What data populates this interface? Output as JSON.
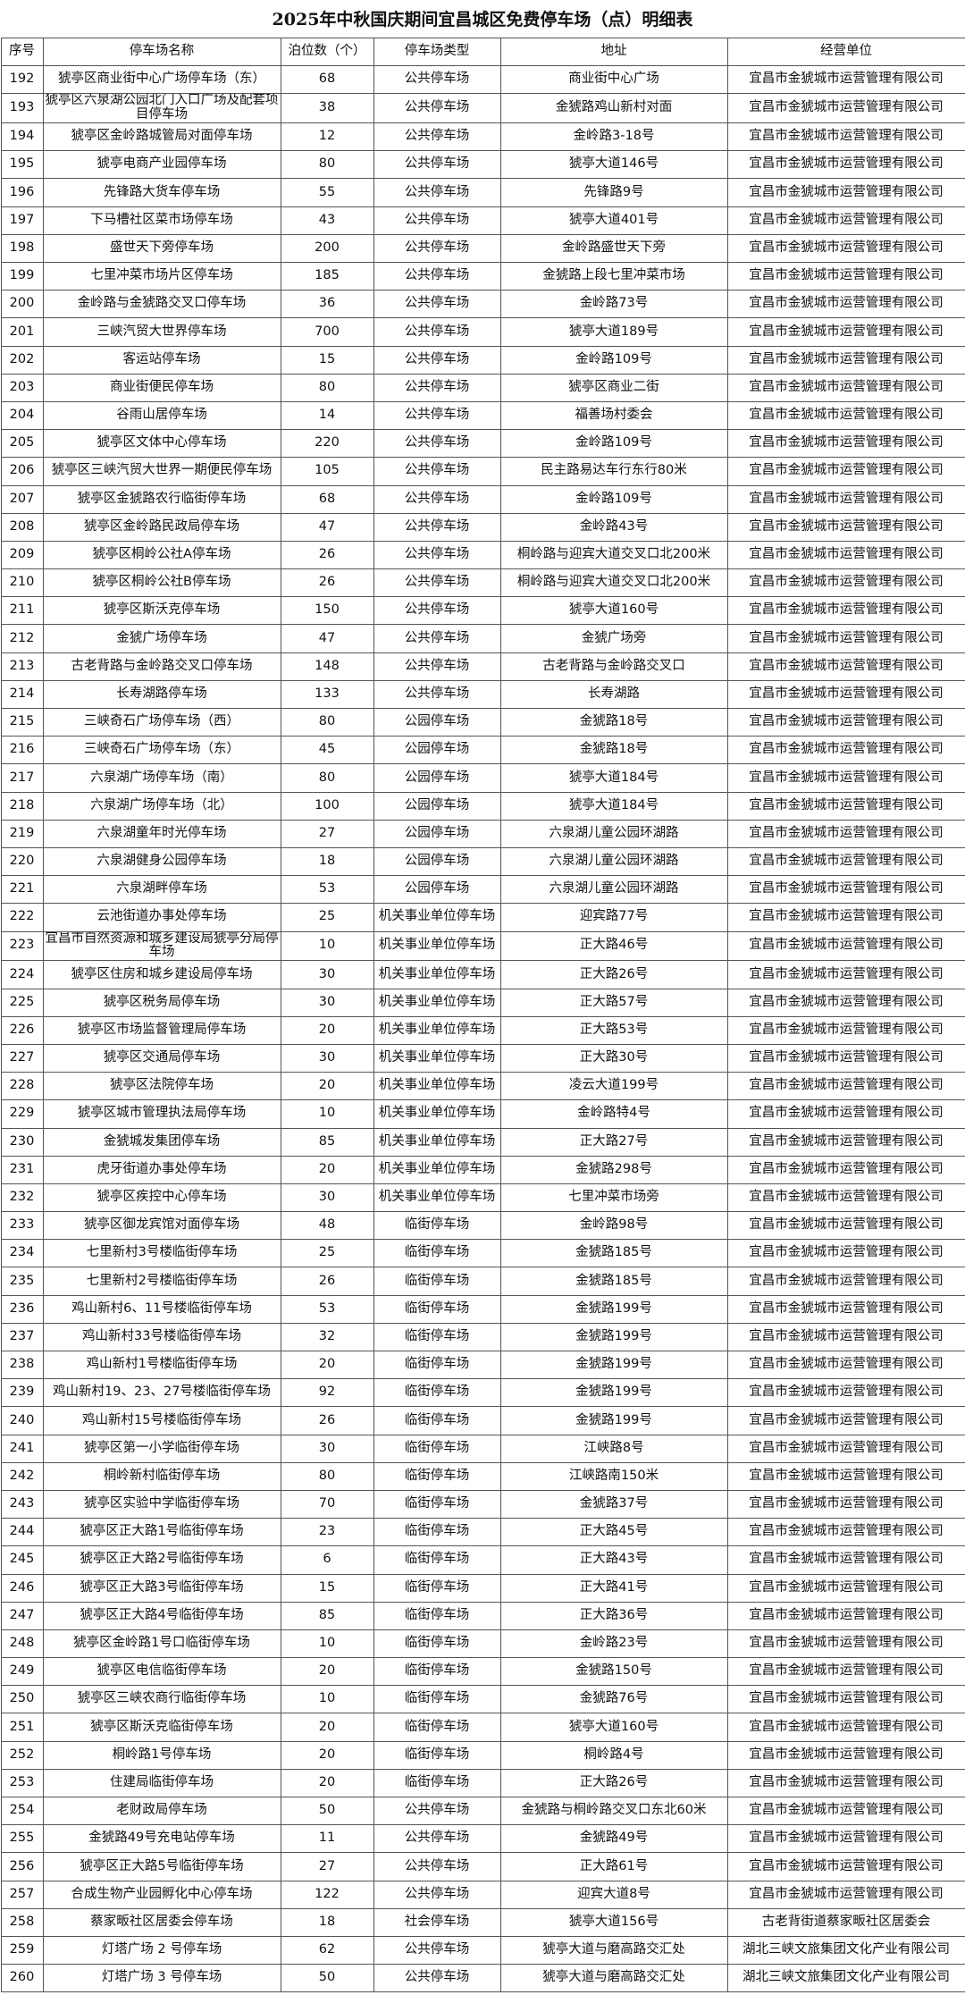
{
  "title": "2025年中秋国庆期间宜昌城区免费停车场（点）明细表",
  "table": {
    "headers": [
      "序号",
      "停车场名称",
      "泊位数（个）",
      "停车场类型",
      "地址",
      "经营单位"
    ],
    "rows": [
      [
        192,
        "猇亭区商业街中心广场停车场（东）",
        68,
        "公共停车场",
        "商业街中心广场",
        "宜昌市金猇城市运营管理有限公司"
      ],
      [
        193,
        "猇亭区六泉湖公园北门入口广场及配套项目停车场",
        38,
        "公共停车场",
        "金猇路鸡山新村对面",
        "宜昌市金猇城市运营管理有限公司"
      ],
      [
        194,
        "猇亭区金岭路城管局对面停车场",
        12,
        "公共停车场",
        "金岭路3-18号",
        "宜昌市金猇城市运营管理有限公司"
      ],
      [
        195,
        "猇亭电商产业园停车场",
        80,
        "公共停车场",
        "猇亭大道146号",
        "宜昌市金猇城市运营管理有限公司"
      ],
      [
        196,
        "先锋路大货车停车场",
        55,
        "公共停车场",
        "先锋路9号",
        "宜昌市金猇城市运营管理有限公司"
      ],
      [
        197,
        "下马槽社区菜市场停车场",
        43,
        "公共停车场",
        "猇亭大道401号",
        "宜昌市金猇城市运营管理有限公司"
      ],
      [
        198,
        "盛世天下旁停车场",
        200,
        "公共停车场",
        "金岭路盛世天下旁",
        "宜昌市金猇城市运营管理有限公司"
      ],
      [
        199,
        "七里冲菜市场片区停车场",
        185,
        "公共停车场",
        "金猇路上段七里冲菜市场",
        "宜昌市金猇城市运营管理有限公司"
      ],
      [
        200,
        "金岭路与金猇路交叉口停车场",
        36,
        "公共停车场",
        "金岭路73号",
        "宜昌市金猇城市运营管理有限公司"
      ],
      [
        201,
        "三峡汽贸大世界停车场",
        700,
        "公共停车场",
        "猇亭大道189号",
        "宜昌市金猇城市运营管理有限公司"
      ],
      [
        202,
        "客运站停车场",
        15,
        "公共停车场",
        "金岭路109号",
        "宜昌市金猇城市运营管理有限公司"
      ],
      [
        203,
        "商业街便民停车场",
        80,
        "公共停车场",
        "猇亭区商业二街",
        "宜昌市金猇城市运营管理有限公司"
      ],
      [
        204,
        "谷雨山居停车场",
        14,
        "公共停车场",
        "福善场村委会",
        "宜昌市金猇城市运营管理有限公司"
      ],
      [
        205,
        "猇亭区文体中心停车场",
        220,
        "公共停车场",
        "金岭路109号",
        "宜昌市金猇城市运营管理有限公司"
      ],
      [
        206,
        "猇亭区三峡汽贸大世界一期便民停车场",
        105,
        "公共停车场",
        "民主路易达车行东行80米",
        "宜昌市金猇城市运营管理有限公司"
      ],
      [
        207,
        "猇亭区金猇路农行临街停车场",
        68,
        "公共停车场",
        "金岭路109号",
        "宜昌市金猇城市运营管理有限公司"
      ],
      [
        208,
        "猇亭区金岭路民政局停车场",
        47,
        "公共停车场",
        "金岭路43号",
        "宜昌市金猇城市运营管理有限公司"
      ],
      [
        209,
        "猇亭区桐岭公社A停车场",
        26,
        "公共停车场",
        "桐岭路与迎宾大道交叉口北200米",
        "宜昌市金猇城市运营管理有限公司"
      ],
      [
        210,
        "猇亭区桐岭公社B停车场",
        26,
        "公共停车场",
        "桐岭路与迎宾大道交叉口北200米",
        "宜昌市金猇城市运营管理有限公司"
      ],
      [
        211,
        "猇亭区斯沃克停车场",
        150,
        "公共停车场",
        "猇亭大道160号",
        "宜昌市金猇城市运营管理有限公司"
      ],
      [
        212,
        "金猇广场停车场",
        47,
        "公共停车场",
        "金猇广场旁",
        "宜昌市金猇城市运营管理有限公司"
      ],
      [
        213,
        "古老背路与金岭路交叉口停车场",
        148,
        "公共停车场",
        "古老背路与金岭路交叉口",
        "宜昌市金猇城市运营管理有限公司"
      ],
      [
        214,
        "长寿湖路停车场",
        133,
        "公共停车场",
        "长寿湖路",
        "宜昌市金猇城市运营管理有限公司"
      ],
      [
        215,
        "三峡奇石广场停车场（西）",
        80,
        "公园停车场",
        "金猇路18号",
        "宜昌市金猇城市运营管理有限公司"
      ],
      [
        216,
        "三峡奇石广场停车场（东）",
        45,
        "公园停车场",
        "金猇路18号",
        "宜昌市金猇城市运营管理有限公司"
      ],
      [
        217,
        "六泉湖广场停车场（南）",
        80,
        "公园停车场",
        "猇亭大道184号",
        "宜昌市金猇城市运营管理有限公司"
      ],
      [
        218,
        "六泉湖广场停车场（北）",
        100,
        "公园停车场",
        "猇亭大道184号",
        "宜昌市金猇城市运营管理有限公司"
      ],
      [
        219,
        "六泉湖童年时光停车场",
        27,
        "公园停车场",
        "六泉湖儿童公园环湖路",
        "宜昌市金猇城市运营管理有限公司"
      ],
      [
        220,
        "六泉湖健身公园停车场",
        18,
        "公园停车场",
        "六泉湖儿童公园环湖路",
        "宜昌市金猇城市运营管理有限公司"
      ],
      [
        221,
        "六泉湖畔停车场",
        53,
        "公园停车场",
        "六泉湖儿童公园环湖路",
        "宜昌市金猇城市运营管理有限公司"
      ],
      [
        222,
        "云池街道办事处停车场",
        25,
        "机关事业单位停车场",
        "迎宾路77号",
        "宜昌市金猇城市运营管理有限公司"
      ],
      [
        223,
        "宜昌市自然资源和城乡建设局猇亭分局停车场",
        10,
        "机关事业单位停车场",
        "正大路46号",
        "宜昌市金猇城市运营管理有限公司"
      ],
      [
        224,
        "猇亭区住房和城乡建设局停车场",
        30,
        "机关事业单位停车场",
        "正大路26号",
        "宜昌市金猇城市运营管理有限公司"
      ],
      [
        225,
        "猇亭区税务局停车场",
        30,
        "机关事业单位停车场",
        "正大路57号",
        "宜昌市金猇城市运营管理有限公司"
      ],
      [
        226,
        "猇亭区市场监督管理局停车场",
        20,
        "机关事业单位停车场",
        "正大路53号",
        "宜昌市金猇城市运营管理有限公司"
      ],
      [
        227,
        "猇亭区交通局停车场",
        30,
        "机关事业单位停车场",
        "正大路30号",
        "宜昌市金猇城市运营管理有限公司"
      ],
      [
        228,
        "猇亭区法院停车场",
        20,
        "机关事业单位停车场",
        "凌云大道199号",
        "宜昌市金猇城市运营管理有限公司"
      ],
      [
        229,
        "猇亭区城市管理执法局停车场",
        10,
        "机关事业单位停车场",
        "金岭路特4号",
        "宜昌市金猇城市运营管理有限公司"
      ],
      [
        230,
        "金猇城发集团停车场",
        85,
        "机关事业单位停车场",
        "正大路27号",
        "宜昌市金猇城市运营管理有限公司"
      ],
      [
        231,
        "虎牙街道办事处停车场",
        20,
        "机关事业单位停车场",
        "金猇路298号",
        "宜昌市金猇城市运营管理有限公司"
      ],
      [
        232,
        "猇亭区疾控中心停车场",
        30,
        "机关事业单位停车场",
        "七里冲菜市场旁",
        "宜昌市金猇城市运营管理有限公司"
      ],
      [
        233,
        "猇亭区御龙宾馆对面停车场",
        48,
        "临街停车场",
        "金岭路98号",
        "宜昌市金猇城市运营管理有限公司"
      ],
      [
        234,
        "七里新村3号楼临街停车场",
        25,
        "临街停车场",
        "金猇路185号",
        "宜昌市金猇城市运营管理有限公司"
      ],
      [
        235,
        "七里新村2号楼临街停车场",
        26,
        "临街停车场",
        "金猇路185号",
        "宜昌市金猇城市运营管理有限公司"
      ],
      [
        236,
        "鸡山新村6、11号楼临街停车场",
        53,
        "临街停车场",
        "金猇路199号",
        "宜昌市金猇城市运营管理有限公司"
      ],
      [
        237,
        "鸡山新村33号楼临街停车场",
        32,
        "临街停车场",
        "金猇路199号",
        "宜昌市金猇城市运营管理有限公司"
      ],
      [
        238,
        "鸡山新村1号楼临街停车场",
        20,
        "临街停车场",
        "金猇路199号",
        "宜昌市金猇城市运营管理有限公司"
      ],
      [
        239,
        "鸡山新村19、23、27号楼临街停车场",
        92,
        "临街停车场",
        "金猇路199号",
        "宜昌市金猇城市运营管理有限公司"
      ],
      [
        240,
        "鸡山新村15号楼临街停车场",
        26,
        "临街停车场",
        "金猇路199号",
        "宜昌市金猇城市运营管理有限公司"
      ],
      [
        241,
        "猇亭区第一小学临街停车场",
        30,
        "临街停车场",
        "江峡路8号",
        "宜昌市金猇城市运营管理有限公司"
      ],
      [
        242,
        "桐岭新村临街停车场",
        80,
        "临街停车场",
        "江峡路南150米",
        "宜昌市金猇城市运营管理有限公司"
      ],
      [
        243,
        "猇亭区实验中学临街停车场",
        70,
        "临街停车场",
        "金猇路37号",
        "宜昌市金猇城市运营管理有限公司"
      ],
      [
        244,
        "猇亭区正大路1号临街停车场",
        23,
        "临街停车场",
        "正大路45号",
        "宜昌市金猇城市运营管理有限公司"
      ],
      [
        245,
        "猇亭区正大路2号临街停车场",
        6,
        "临街停车场",
        "正大路43号",
        "宜昌市金猇城市运营管理有限公司"
      ],
      [
        246,
        "猇亭区正大路3号临街停车场",
        15,
        "临街停车场",
        "正大路41号",
        "宜昌市金猇城市运营管理有限公司"
      ],
      [
        247,
        "猇亭区正大路4号临街停车场",
        85,
        "临街停车场",
        "正大路36号",
        "宜昌市金猇城市运营管理有限公司"
      ],
      [
        248,
        "猇亭区金岭路1号口临街停车场",
        10,
        "临街停车场",
        "金岭路23号",
        "宜昌市金猇城市运营管理有限公司"
      ],
      [
        249,
        "猇亭区电信临街停车场",
        20,
        "临街停车场",
        "金猇路150号",
        "宜昌市金猇城市运营管理有限公司"
      ],
      [
        250,
        "猇亭区三峡农商行临街停车场",
        10,
        "临街停车场",
        "金猇路76号",
        "宜昌市金猇城市运营管理有限公司"
      ],
      [
        251,
        "猇亭区斯沃克临街停车场",
        20,
        "临街停车场",
        "猇亭大道160号",
        "宜昌市金猇城市运营管理有限公司"
      ],
      [
        252,
        "桐岭路1号停车场",
        20,
        "临街停车场",
        "桐岭路4号",
        "宜昌市金猇城市运营管理有限公司"
      ],
      [
        253,
        "住建局临街停车场",
        20,
        "临街停车场",
        "正大路26号",
        "宜昌市金猇城市运营管理有限公司"
      ],
      [
        254,
        "老财政局停车场",
        50,
        "公共停车场",
        "金猇路与桐岭路交叉口东北60米",
        "宜昌市金猇城市运营管理有限公司"
      ],
      [
        255,
        "金猇路49号充电站停车场",
        11,
        "公共停车场",
        "金猇路49号",
        "宜昌市金猇城市运营管理有限公司"
      ],
      [
        256,
        "猇亭区正大路5号临街停车场",
        27,
        "公共停车场",
        "正大路61号",
        "宜昌市金猇城市运营管理有限公司"
      ],
      [
        257,
        "合成生物产业园孵化中心停车场",
        122,
        "公共停车场",
        "迎宾大道8号",
        "宜昌市金猇城市运营管理有限公司"
      ],
      [
        258,
        "蔡家畈社区居委会停车场",
        18,
        "社会停车场",
        "猇亭大道156号",
        "古老背街道蔡家畈社区居委会"
      ],
      [
        259,
        "灯塔广场 2 号停车场",
        62,
        "公共停车场",
        "猇亭大道与磨高路交汇处",
        "湖北三峡文旅集团文化产业有限公司"
      ],
      [
        260,
        "灯塔广场 3 号停车场",
        50,
        "公共停车场",
        "猇亭大道与磨高路交汇处",
        "湖北三峡文旅集团文化产业有限公司"
      ]
    ]
  }
}
